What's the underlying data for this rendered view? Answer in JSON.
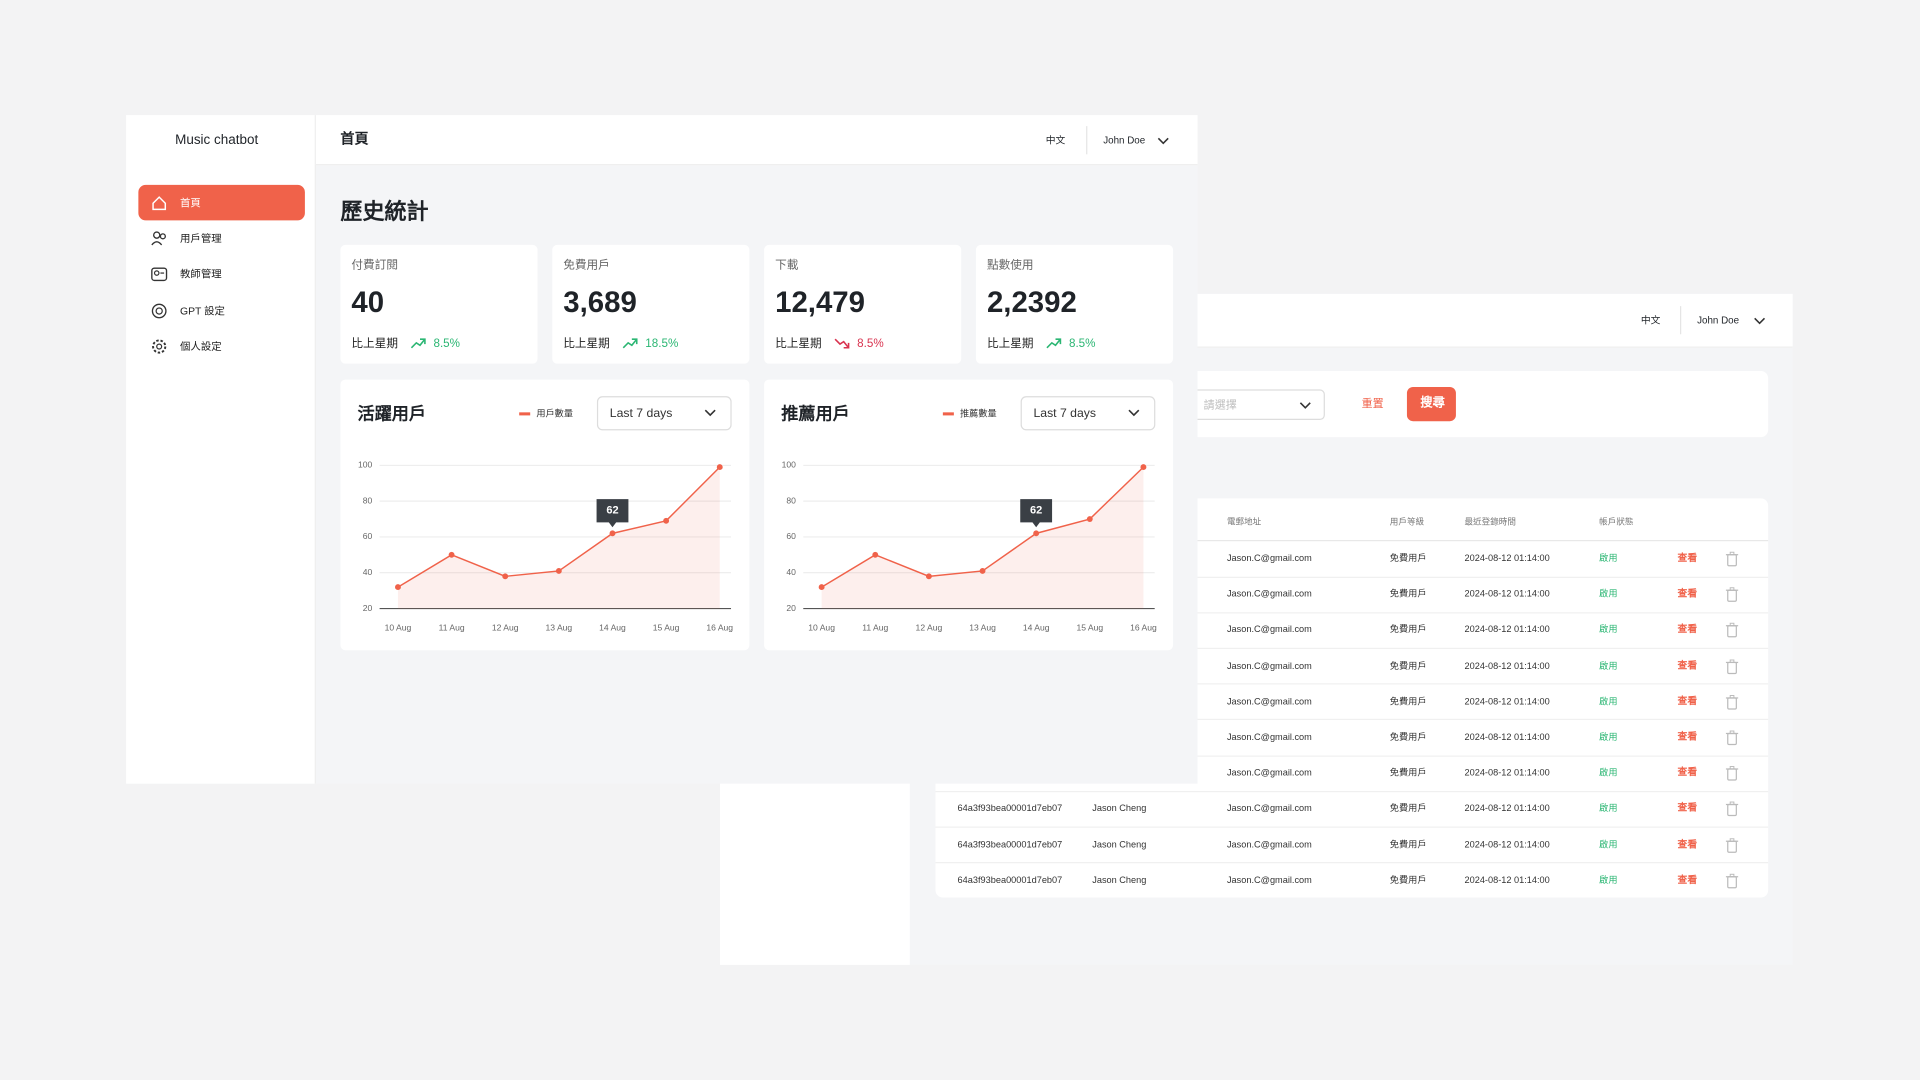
{
  "sidebar": {
    "brand": "Music chatbot",
    "nav": [
      {
        "label": "首頁",
        "active": true
      },
      {
        "label": "用戶管理",
        "active": false
      },
      {
        "label": "教師管理",
        "active": false
      },
      {
        "label": "GPT 設定",
        "active": false
      },
      {
        "label": "個人設定",
        "active": false
      }
    ]
  },
  "header": {
    "title": "首頁",
    "language": "中文",
    "user": "John Doe"
  },
  "page_title": "歷史統計",
  "stats": [
    {
      "label": "付費訂閱",
      "value": "40",
      "compare": "比上星期",
      "change": "8.5%",
      "trend": "up"
    },
    {
      "label": "免費用戶",
      "value": "3,689",
      "compare": "比上星期",
      "change": "18.5%",
      "trend": "up"
    },
    {
      "label": "下載",
      "value": "12,479",
      "compare": "比上星期",
      "change": "8.5%",
      "trend": "down"
    },
    {
      "label": "點數使用",
      "value": "2,2392",
      "compare": "比上星期",
      "change": "8.5%",
      "trend": "up"
    }
  ],
  "chart_data": [
    {
      "type": "line",
      "title": "活躍用戶",
      "range": "Last 7 days",
      "categories": [
        "10 Aug",
        "11 Aug",
        "12 Aug",
        "13 Aug",
        "14 Aug",
        "15 Aug",
        "16 Aug"
      ],
      "series": [
        {
          "name": "用戶數量",
          "color": "#f0624a",
          "values": [
            32,
            50,
            38,
            41,
            62,
            69,
            99
          ],
          "value_labels": [
            null,
            null,
            null,
            null,
            "62",
            null,
            null
          ]
        }
      ],
      "ylim": [
        20,
        100
      ],
      "yticks": [
        20,
        40,
        60,
        80,
        100
      ],
      "grid": true
    },
    {
      "type": "line",
      "title": "推薦用戶",
      "range": "Last 7 days",
      "categories": [
        "10 Aug",
        "11 Aug",
        "12 Aug",
        "13 Aug",
        "14 Aug",
        "15 Aug",
        "16 Aug"
      ],
      "series": [
        {
          "name": "推薦數量",
          "color": "#f0624a",
          "values": [
            32,
            50,
            38,
            41,
            62,
            70,
            99
          ],
          "value_labels": [
            null,
            null,
            null,
            null,
            "62",
            null,
            null
          ]
        }
      ],
      "ylim": [
        20,
        100
      ],
      "yticks": [
        20,
        40,
        60,
        80,
        100
      ],
      "grid": true
    }
  ],
  "back_window": {
    "header": {
      "language": "中文",
      "user": "John Doe"
    },
    "filter": {
      "placeholder": "請選擇",
      "reset": "重置",
      "search": "搜尋"
    },
    "table": {
      "columns": [
        "電郵地址",
        "用戶等級",
        "最近登錄時間",
        "帳戶狀態"
      ],
      "rows": [
        {
          "email": "Jason.C@gmail.com",
          "level": "免費用戶",
          "time": "2024-08-12 01:14:00",
          "status": "啟用",
          "action": "查看"
        },
        {
          "email": "Jason.C@gmail.com",
          "level": "免費用戶",
          "time": "2024-08-12 01:14:00",
          "status": "啟用",
          "action": "查看"
        },
        {
          "email": "Jason.C@gmail.com",
          "level": "免費用戶",
          "time": "2024-08-12 01:14:00",
          "status": "啟用",
          "action": "查看"
        },
        {
          "email": "Jason.C@gmail.com",
          "level": "免費用戶",
          "time": "2024-08-12 01:14:00",
          "status": "啟用",
          "action": "查看"
        },
        {
          "email": "Jason.C@gmail.com",
          "level": "免費用戶",
          "time": "2024-08-12 01:14:00",
          "status": "啟用",
          "action": "查看"
        },
        {
          "email": "Jason.C@gmail.com",
          "level": "免費用戶",
          "time": "2024-08-12 01:14:00",
          "status": "啟用",
          "action": "查看"
        },
        {
          "email": "Jason.C@gmail.com",
          "level": "免費用戶",
          "time": "2024-08-12 01:14:00",
          "status": "啟用",
          "action": "查看"
        },
        {
          "id": "64a3f93bea00001d7eb07",
          "name": "Jason Cheng",
          "email": "Jason.C@gmail.com",
          "level": "免費用戶",
          "time": "2024-08-12 01:14:00",
          "status": "啟用",
          "action": "查看"
        },
        {
          "id": "64a3f93bea00001d7eb07",
          "name": "Jason Cheng",
          "email": "Jason.C@gmail.com",
          "level": "免費用戶",
          "time": "2024-08-12 01:14:00",
          "status": "啟用",
          "action": "查看"
        },
        {
          "id": "64a3f93bea00001d7eb07",
          "name": "Jason Cheng",
          "email": "Jason.C@gmail.com",
          "level": "免費用戶",
          "time": "2024-08-12 01:14:00",
          "status": "啟用",
          "action": "查看"
        }
      ]
    }
  }
}
